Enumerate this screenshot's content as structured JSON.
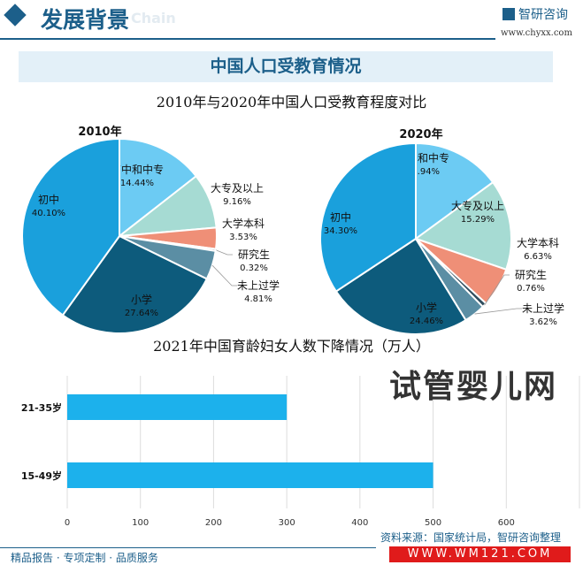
{
  "header": {
    "title": "发展背景",
    "title_en": "Chain",
    "brand": "智研咨询",
    "url": "www.chyxx.com"
  },
  "banner": "中国人口受教育情况",
  "footer": {
    "tagline": "精品报告 · 专项定制 · 品质服务",
    "source": "资料来源：国家统计局，智研咨询整理"
  },
  "watermark": {
    "text": "试管婴儿网",
    "url": "WWW.WM121.COM"
  },
  "chart_data": [
    {
      "type": "pie",
      "title": "2010年与2020年中国人口受教育程度对比",
      "subtitle": "2010年",
      "labels": [
        "高中和中专",
        "大专及以上",
        "大学本科",
        "研究生",
        "未上过学",
        "小学",
        "初中"
      ],
      "values": [
        14.44,
        9.16,
        3.53,
        0.32,
        4.81,
        27.64,
        40.1
      ],
      "value_labels": [
        "14.44%",
        "9.16%",
        "3.53%",
        "0.32%",
        "4.81%",
        "27.64%",
        "40.10%"
      ],
      "colors": [
        "#6ccbf3",
        "#a6dbd3",
        "#ef8f77",
        "#2f4d5e",
        "#5b8ea4",
        "#0d5b7c",
        "#1aa0dc"
      ]
    },
    {
      "type": "pie",
      "subtitle": "2020年",
      "labels": [
        "高中和中专",
        "大专及以上",
        "大学本科",
        "研究生",
        "未上过学",
        "小学",
        "初中"
      ],
      "values": [
        14.94,
        15.29,
        6.63,
        0.76,
        3.62,
        24.46,
        34.3
      ],
      "value_labels": [
        "14.94%",
        "15.29%",
        "6.63%",
        "0.76%",
        "3.62%",
        "24.46%",
        "34.30%"
      ],
      "colors": [
        "#6ccbf3",
        "#a6dbd3",
        "#ef8f77",
        "#2f4d5e",
        "#5b8ea4",
        "#0d5b7c",
        "#1aa0dc"
      ]
    },
    {
      "type": "bar",
      "orientation": "horizontal",
      "title": "2021年中国育龄妇女人数下降情况（万人）",
      "categories": [
        "21-35岁",
        "15-49岁"
      ],
      "values": [
        300,
        500
      ],
      "xlim": [
        0,
        700
      ],
      "xticks": [
        "0",
        "100",
        "200",
        "300",
        "400",
        "500",
        "600"
      ],
      "grid": true,
      "color": "#1cb1ec"
    }
  ]
}
